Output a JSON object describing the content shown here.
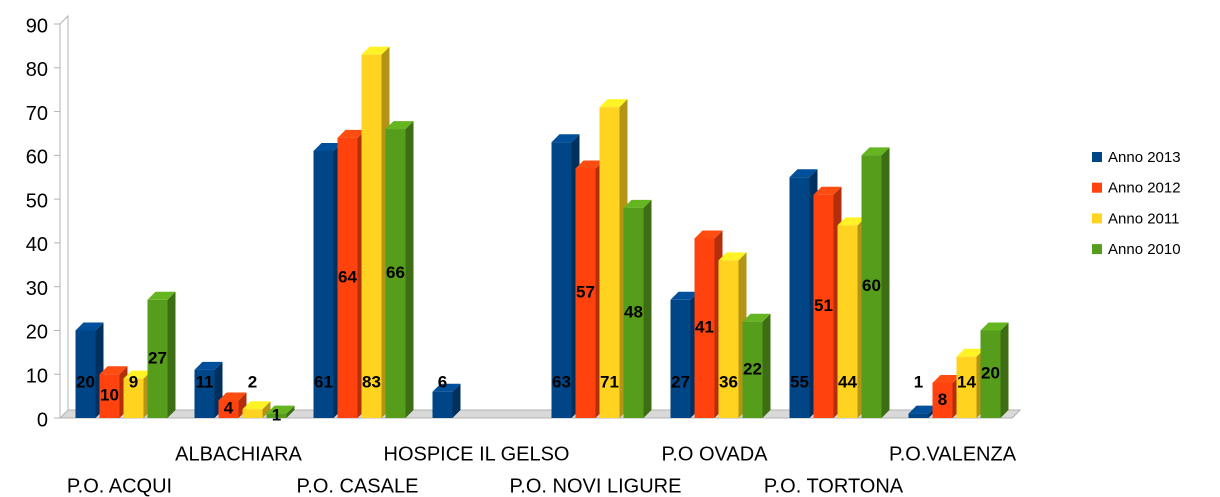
{
  "chart_data": {
    "type": "bar",
    "three_d": true,
    "categories": [
      "P.O. ACQUI",
      "ALBACHIARA",
      "P.O. CASALE",
      "HOSPICE IL GELSO",
      "P.O. NOVI LIGURE",
      "P.O OVADA",
      "P.O. TORTONA",
      "P.O.VALENZA"
    ],
    "series": [
      {
        "name": "Anno 2013",
        "color": "#004586",
        "values": [
          20,
          11,
          61,
          6,
          63,
          27,
          55,
          1
        ]
      },
      {
        "name": "Anno 2012",
        "color": "#ff420e",
        "values": [
          10,
          4,
          64,
          null,
          57,
          41,
          51,
          8
        ]
      },
      {
        "name": "Anno 2011",
        "color": "#ffd320",
        "values": [
          9,
          2,
          83,
          null,
          71,
          36,
          44,
          14
        ]
      },
      {
        "name": "Anno 2010",
        "color": "#579d1c",
        "values": [
          27,
          1,
          66,
          null,
          48,
          22,
          60,
          20
        ]
      }
    ],
    "ylim": [
      0,
      90
    ],
    "yticks": [
      0,
      10,
      20,
      30,
      40,
      50,
      60,
      70,
      80,
      90
    ],
    "grid": false,
    "legend": "right"
  }
}
